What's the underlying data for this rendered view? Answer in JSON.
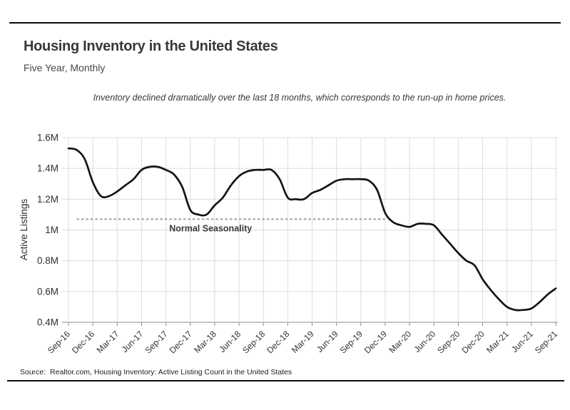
{
  "page": {
    "title": "Housing Inventory in the United States",
    "subtitle": "Five Year, Monthly",
    "annotation": "Inventory declined dramatically over the last 18 months, which corresponds to the run-up in home prices.",
    "source": "Source:  Realtor.com, Housing Inventory: Active Listing Count in the United States"
  },
  "chart_data": {
    "type": "line",
    "title": "Housing Inventory in the United States",
    "subtitle": "Five Year, Monthly",
    "xlabel": "",
    "ylabel": "Active Listings",
    "ylim": [
      0.4,
      1.6
    ],
    "grid": true,
    "legend_position": "none",
    "line_color": "#141414",
    "gridline_color": "#dcdcdc",
    "axis_color": "#8c8c8c",
    "y_tick_labels": [
      "1.6M",
      "1.4M",
      "1.2M",
      "1M",
      "0.8M",
      "0.6M",
      "0.4M"
    ],
    "y_tick_values": [
      1.6,
      1.4,
      1.2,
      1.0,
      0.8,
      0.6,
      0.4
    ],
    "x_tick_labels": [
      "Sep-16",
      "Dec-16",
      "Mar-17",
      "Jun-17",
      "Sep-17",
      "Dec-17",
      "Mar-18",
      "Jun-18",
      "Sep-18",
      "Dec-18",
      "Mar-19",
      "Jun-19",
      "Sep-19",
      "Dec-19",
      "Mar-20",
      "Jun-20",
      "Sep-20",
      "Dec-20",
      "Mar-21",
      "Jun-21",
      "Sep-21"
    ],
    "x": [
      "Sep-16",
      "Oct-16",
      "Nov-16",
      "Dec-16",
      "Jan-17",
      "Feb-17",
      "Mar-17",
      "Apr-17",
      "May-17",
      "Jun-17",
      "Jul-17",
      "Aug-17",
      "Sep-17",
      "Oct-17",
      "Nov-17",
      "Dec-17",
      "Jan-18",
      "Feb-18",
      "Mar-18",
      "Apr-18",
      "May-18",
      "Jun-18",
      "Jul-18",
      "Aug-18",
      "Sep-18",
      "Oct-18",
      "Nov-18",
      "Dec-18",
      "Jan-19",
      "Feb-19",
      "Mar-19",
      "Apr-19",
      "May-19",
      "Jun-19",
      "Jul-19",
      "Aug-19",
      "Sep-19",
      "Oct-19",
      "Nov-19",
      "Dec-19",
      "Jan-20",
      "Feb-20",
      "Mar-20",
      "Apr-20",
      "May-20",
      "Jun-20",
      "Jul-20",
      "Aug-20",
      "Sep-20",
      "Oct-20",
      "Nov-20",
      "Dec-20",
      "Jan-21",
      "Feb-21",
      "Mar-21",
      "Apr-21",
      "May-21",
      "Jun-21",
      "Jul-21",
      "Aug-21",
      "Sep-21"
    ],
    "values": [
      1.53,
      1.52,
      1.46,
      1.31,
      1.22,
      1.22,
      1.25,
      1.29,
      1.33,
      1.39,
      1.41,
      1.41,
      1.39,
      1.36,
      1.28,
      1.13,
      1.1,
      1.1,
      1.16,
      1.21,
      1.29,
      1.35,
      1.38,
      1.39,
      1.39,
      1.39,
      1.33,
      1.21,
      1.2,
      1.2,
      1.24,
      1.26,
      1.29,
      1.32,
      1.33,
      1.33,
      1.33,
      1.32,
      1.26,
      1.11,
      1.05,
      1.03,
      1.02,
      1.04,
      1.04,
      1.03,
      0.97,
      0.91,
      0.85,
      0.8,
      0.77,
      0.68,
      0.61,
      0.55,
      0.5,
      0.48,
      0.48,
      0.49,
      0.53,
      0.58,
      0.62
    ],
    "annotation_line": {
      "label": "Normal Seasonality",
      "value": 1.07,
      "start_month": "Oct-16",
      "end_month": "Dec-19",
      "style": "dashed",
      "color": "#9e9e9e"
    }
  }
}
